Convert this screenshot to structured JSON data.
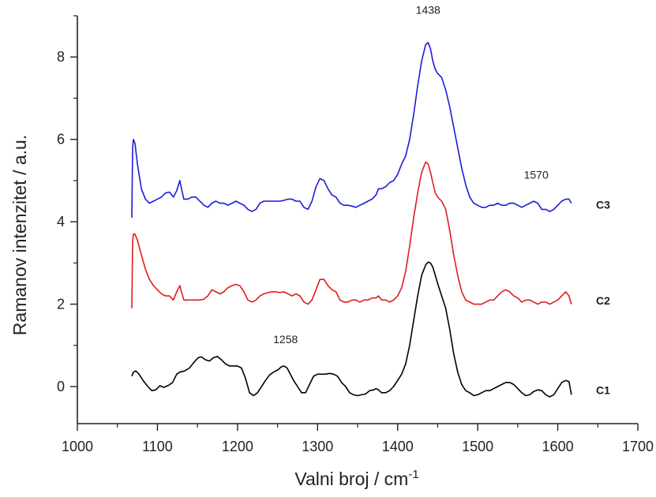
{
  "chart_data": {
    "type": "line",
    "title": "",
    "xlabel": "Valni broj / cm",
    "xlabel_sup": "-1",
    "ylabel": "Ramanov intenzitet / a.u.",
    "xlim": [
      1000,
      1700
    ],
    "ylim": [
      -0.9,
      9.0
    ],
    "x_ticks": [
      1000,
      1100,
      1200,
      1300,
      1400,
      1500,
      1600,
      1700
    ],
    "y_ticks": [
      0,
      2,
      4,
      6,
      8
    ],
    "grid": false,
    "legend": "none",
    "series": [
      {
        "name": "C1",
        "color": "#000000",
        "x": [
          1068,
          1070,
          1073,
          1077,
          1082,
          1088,
          1093,
          1098,
          1103,
          1108,
          1114,
          1119,
          1124,
          1128,
          1134,
          1140,
          1146,
          1151,
          1155,
          1160,
          1165,
          1170,
          1175,
          1180,
          1185,
          1190,
          1195,
          1200,
          1205,
          1210,
          1215,
          1220,
          1225,
          1230,
          1235,
          1240,
          1245,
          1250,
          1255,
          1258,
          1262,
          1266,
          1270,
          1275,
          1280,
          1285,
          1290,
          1295,
          1300,
          1305,
          1310,
          1315,
          1320,
          1325,
          1330,
          1335,
          1340,
          1345,
          1350,
          1355,
          1360,
          1365,
          1370,
          1373,
          1376,
          1380,
          1385,
          1390,
          1395,
          1400,
          1405,
          1410,
          1415,
          1420,
          1425,
          1430,
          1435,
          1438,
          1441,
          1444,
          1447,
          1450,
          1455,
          1460,
          1465,
          1470,
          1475,
          1480,
          1485,
          1490,
          1495,
          1500,
          1505,
          1510,
          1515,
          1520,
          1525,
          1530,
          1535,
          1540,
          1545,
          1550,
          1555,
          1560,
          1565,
          1570,
          1575,
          1580,
          1585,
          1590,
          1595,
          1600,
          1605,
          1610,
          1614,
          1617
        ],
        "y": [
          0.25,
          0.35,
          0.38,
          0.3,
          0.15,
          0.0,
          -0.1,
          -0.08,
          0.02,
          -0.02,
          0.03,
          0.1,
          0.3,
          0.35,
          0.38,
          0.45,
          0.6,
          0.7,
          0.72,
          0.65,
          0.62,
          0.7,
          0.73,
          0.65,
          0.55,
          0.5,
          0.5,
          0.5,
          0.45,
          0.2,
          -0.15,
          -0.22,
          -0.15,
          0.0,
          0.15,
          0.28,
          0.35,
          0.4,
          0.48,
          0.5,
          0.45,
          0.3,
          0.15,
          0.0,
          -0.15,
          -0.15,
          0.05,
          0.25,
          0.3,
          0.3,
          0.3,
          0.32,
          0.3,
          0.25,
          0.1,
          0.0,
          -0.15,
          -0.2,
          -0.22,
          -0.2,
          -0.18,
          -0.1,
          -0.08,
          -0.05,
          -0.08,
          -0.15,
          -0.15,
          -0.1,
          0.0,
          0.15,
          0.3,
          0.55,
          1.0,
          1.6,
          2.2,
          2.7,
          2.95,
          3.02,
          3.0,
          2.9,
          2.7,
          2.5,
          2.2,
          1.9,
          1.4,
          0.8,
          0.35,
          0.05,
          -0.1,
          -0.15,
          -0.22,
          -0.2,
          -0.15,
          -0.1,
          -0.1,
          -0.05,
          0.0,
          0.05,
          0.1,
          0.1,
          0.05,
          -0.05,
          -0.15,
          -0.22,
          -0.2,
          -0.12,
          -0.08,
          -0.1,
          -0.2,
          -0.25,
          -0.2,
          -0.05,
          0.1,
          0.15,
          0.12,
          -0.2
        ]
      },
      {
        "name": "C2",
        "color": "#e11c1c",
        "x": [
          1068,
          1069,
          1070,
          1072,
          1075,
          1080,
          1085,
          1090,
          1095,
          1100,
          1105,
          1110,
          1115,
          1120,
          1124,
          1128,
          1130,
          1133,
          1138,
          1143,
          1148,
          1153,
          1158,
          1163,
          1168,
          1173,
          1178,
          1183,
          1188,
          1193,
          1198,
          1203,
          1208,
          1213,
          1218,
          1223,
          1228,
          1233,
          1238,
          1243,
          1248,
          1253,
          1258,
          1263,
          1268,
          1273,
          1278,
          1283,
          1288,
          1293,
          1298,
          1303,
          1308,
          1313,
          1318,
          1323,
          1328,
          1333,
          1338,
          1343,
          1348,
          1353,
          1358,
          1363,
          1368,
          1373,
          1376,
          1380,
          1385,
          1390,
          1395,
          1400,
          1405,
          1410,
          1415,
          1420,
          1425,
          1430,
          1435,
          1438,
          1441,
          1444,
          1447,
          1450,
          1455,
          1460,
          1465,
          1470,
          1475,
          1480,
          1485,
          1490,
          1495,
          1500,
          1505,
          1510,
          1515,
          1520,
          1525,
          1530,
          1535,
          1540,
          1545,
          1550,
          1555,
          1560,
          1565,
          1570,
          1575,
          1580,
          1585,
          1590,
          1595,
          1600,
          1605,
          1610,
          1614,
          1617
        ],
        "y": [
          1.9,
          3.5,
          3.7,
          3.7,
          3.55,
          3.2,
          2.85,
          2.6,
          2.45,
          2.35,
          2.25,
          2.2,
          2.2,
          2.1,
          2.3,
          2.45,
          2.3,
          2.1,
          2.1,
          2.1,
          2.1,
          2.1,
          2.12,
          2.2,
          2.35,
          2.3,
          2.25,
          2.3,
          2.4,
          2.45,
          2.48,
          2.45,
          2.3,
          2.1,
          2.05,
          2.1,
          2.2,
          2.25,
          2.28,
          2.3,
          2.3,
          2.28,
          2.3,
          2.25,
          2.2,
          2.25,
          2.2,
          2.05,
          2.0,
          2.1,
          2.35,
          2.6,
          2.6,
          2.45,
          2.35,
          2.3,
          2.1,
          2.05,
          2.05,
          2.1,
          2.1,
          2.05,
          2.1,
          2.1,
          2.15,
          2.15,
          2.2,
          2.1,
          2.1,
          2.05,
          2.1,
          2.2,
          2.4,
          2.8,
          3.4,
          4.1,
          4.7,
          5.2,
          5.45,
          5.4,
          5.2,
          4.95,
          4.7,
          4.6,
          4.5,
          4.3,
          3.8,
          3.2,
          2.7,
          2.3,
          2.1,
          2.05,
          2.0,
          2.0,
          2.0,
          2.05,
          2.1,
          2.1,
          2.2,
          2.3,
          2.35,
          2.3,
          2.2,
          2.15,
          2.05,
          2.1,
          2.1,
          2.05,
          2.0,
          2.05,
          2.05,
          2.0,
          2.05,
          2.1,
          2.2,
          2.3,
          2.2,
          2.0
        ]
      },
      {
        "name": "C3",
        "color": "#1c1cd9",
        "x": [
          1068,
          1069,
          1070,
          1072,
          1075,
          1080,
          1085,
          1090,
          1095,
          1100,
          1105,
          1110,
          1115,
          1120,
          1124,
          1128,
          1130,
          1133,
          1138,
          1143,
          1148,
          1153,
          1158,
          1163,
          1168,
          1173,
          1178,
          1183,
          1188,
          1193,
          1198,
          1203,
          1208,
          1213,
          1218,
          1223,
          1228,
          1233,
          1238,
          1243,
          1248,
          1253,
          1258,
          1263,
          1268,
          1273,
          1278,
          1283,
          1288,
          1293,
          1298,
          1303,
          1308,
          1313,
          1318,
          1323,
          1328,
          1333,
          1338,
          1343,
          1348,
          1353,
          1358,
          1363,
          1368,
          1373,
          1376,
          1380,
          1385,
          1390,
          1395,
          1400,
          1405,
          1410,
          1415,
          1420,
          1425,
          1430,
          1435,
          1438,
          1441,
          1444,
          1447,
          1450,
          1455,
          1460,
          1465,
          1470,
          1475,
          1480,
          1485,
          1490,
          1495,
          1500,
          1505,
          1510,
          1515,
          1520,
          1525,
          1530,
          1535,
          1540,
          1545,
          1550,
          1555,
          1560,
          1565,
          1570,
          1575,
          1580,
          1585,
          1590,
          1595,
          1600,
          1605,
          1610,
          1614,
          1617
        ],
        "y": [
          4.1,
          5.8,
          6.0,
          5.9,
          5.4,
          4.8,
          4.55,
          4.45,
          4.5,
          4.55,
          4.6,
          4.7,
          4.72,
          4.6,
          4.75,
          5.0,
          4.8,
          4.55,
          4.55,
          4.6,
          4.6,
          4.5,
          4.4,
          4.35,
          4.45,
          4.5,
          4.45,
          4.45,
          4.4,
          4.45,
          4.5,
          4.45,
          4.4,
          4.3,
          4.25,
          4.3,
          4.45,
          4.5,
          4.5,
          4.5,
          4.5,
          4.5,
          4.52,
          4.55,
          4.55,
          4.5,
          4.5,
          4.35,
          4.3,
          4.5,
          4.85,
          5.05,
          5.0,
          4.8,
          4.65,
          4.6,
          4.45,
          4.4,
          4.4,
          4.38,
          4.35,
          4.4,
          4.45,
          4.5,
          4.55,
          4.65,
          4.8,
          4.8,
          4.85,
          4.95,
          5.0,
          5.15,
          5.4,
          5.6,
          6.0,
          6.6,
          7.3,
          7.9,
          8.3,
          8.35,
          8.2,
          7.9,
          7.7,
          7.6,
          7.5,
          7.2,
          6.8,
          6.3,
          5.8,
          5.3,
          4.9,
          4.6,
          4.45,
          4.4,
          4.35,
          4.35,
          4.4,
          4.4,
          4.45,
          4.4,
          4.4,
          4.45,
          4.45,
          4.4,
          4.35,
          4.4,
          4.45,
          4.5,
          4.45,
          4.3,
          4.3,
          4.25,
          4.3,
          4.4,
          4.5,
          4.55,
          4.55,
          4.45
        ]
      }
    ],
    "series_labels": [
      "C3",
      "C2",
      "C1"
    ],
    "annotations": [
      {
        "text": "1438",
        "x": 1438,
        "y": 9.05
      },
      {
        "text": "1570",
        "x": 1573,
        "y": 5.05
      },
      {
        "text": "1258",
        "x": 1260,
        "y": 1.05
      }
    ]
  }
}
